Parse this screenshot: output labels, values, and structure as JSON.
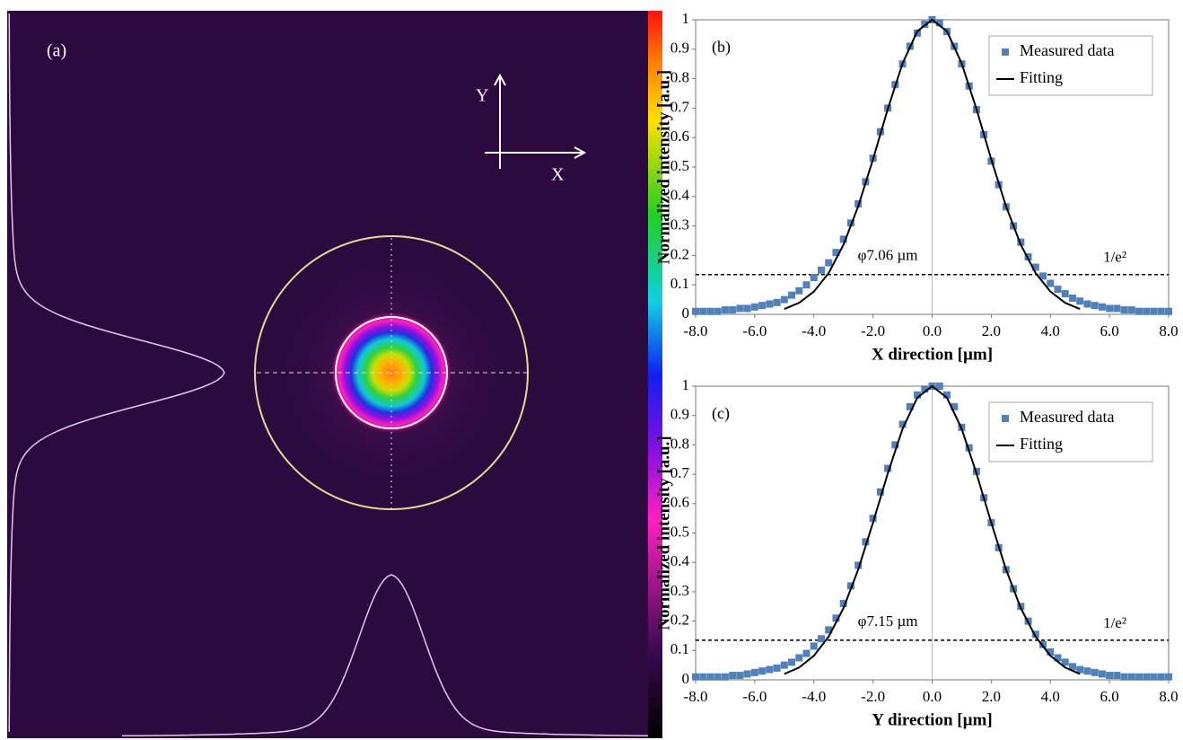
{
  "panel_a": {
    "label": "(a)",
    "axis_y": "Y",
    "axis_x": "X"
  },
  "chart_data": [
    {
      "type": "scatter-line",
      "panel_label": "(b)",
      "x_label": "X direction [µm]",
      "y_label": "Normalized intensity [a.u.]",
      "xlim": [
        -8,
        8
      ],
      "ylim": [
        0,
        1
      ],
      "xticks": [
        {
          "value": -8,
          "label": "-8.0"
        },
        {
          "value": -6,
          "label": "-6.0"
        },
        {
          "value": -4,
          "label": "-4.0"
        },
        {
          "value": -2,
          "label": "-2.0"
        },
        {
          "value": 0,
          "label": "0.0"
        },
        {
          "value": 2,
          "label": "2.0"
        },
        {
          "value": 4,
          "label": "4.0"
        },
        {
          "value": 6,
          "label": "6.0"
        },
        {
          "value": 8,
          "label": "8.0"
        }
      ],
      "yticks": [
        0,
        0.1,
        0.2,
        0.3,
        0.4,
        0.5,
        0.6,
        0.7,
        0.8,
        0.9,
        1
      ],
      "threshold": 0.135,
      "threshold_label": "1/e²",
      "diameter_label": "φ7.06 µm",
      "legend": "upper right",
      "series": [
        {
          "name": "Measured data",
          "color": "#4f81bd",
          "marker": "square",
          "x": [
            -8,
            -7.75,
            -7.5,
            -7.25,
            -7,
            -6.75,
            -6.5,
            -6.25,
            -6,
            -5.75,
            -5.5,
            -5.25,
            -5,
            -4.75,
            -4.5,
            -4.25,
            -4,
            -3.75,
            -3.5,
            -3.25,
            -3,
            -2.75,
            -2.5,
            -2.25,
            -2,
            -1.75,
            -1.5,
            -1.25,
            -1,
            -0.75,
            -0.5,
            -0.25,
            0,
            0.25,
            0.5,
            0.75,
            1,
            1.25,
            1.5,
            1.75,
            2,
            2.25,
            2.5,
            2.75,
            3,
            3.25,
            3.5,
            3.75,
            4,
            4.25,
            4.5,
            4.75,
            5,
            5.25,
            5.5,
            5.75,
            6,
            6.25,
            6.5,
            6.75,
            7,
            7.25,
            7.5,
            7.75,
            8
          ],
          "values": [
            0.01,
            0.01,
            0.01,
            0.01,
            0.015,
            0.015,
            0.02,
            0.02,
            0.025,
            0.03,
            0.035,
            0.04,
            0.05,
            0.065,
            0.08,
            0.1,
            0.125,
            0.15,
            0.175,
            0.21,
            0.255,
            0.31,
            0.375,
            0.45,
            0.53,
            0.62,
            0.7,
            0.78,
            0.85,
            0.91,
            0.955,
            0.985,
            1,
            0.99,
            0.96,
            0.91,
            0.85,
            0.775,
            0.695,
            0.61,
            0.52,
            0.44,
            0.365,
            0.3,
            0.245,
            0.195,
            0.16,
            0.13,
            0.105,
            0.085,
            0.07,
            0.055,
            0.045,
            0.035,
            0.03,
            0.025,
            0.02,
            0.02,
            0.015,
            0.015,
            0.01,
            0.01,
            0.01,
            0.01,
            0.01
          ]
        },
        {
          "name": "Fitting",
          "color": "#000000",
          "marker": "line",
          "x": [
            -5,
            -4.5,
            -4,
            -3.5,
            -3,
            -2.5,
            -2,
            -1.5,
            -1,
            -0.5,
            0,
            0.5,
            1,
            1.5,
            2,
            2.5,
            3,
            3.5,
            4,
            4.5,
            5
          ],
          "values": [
            0.018,
            0.039,
            0.077,
            0.14,
            0.236,
            0.367,
            0.526,
            0.697,
            0.852,
            0.961,
            1,
            0.961,
            0.852,
            0.697,
            0.526,
            0.367,
            0.236,
            0.14,
            0.077,
            0.039,
            0.018
          ]
        }
      ]
    },
    {
      "type": "scatter-line",
      "panel_label": "(c)",
      "x_label": "Y direction [µm]",
      "y_label": "Normalized intensity [a.u.]",
      "xlim": [
        -8,
        8
      ],
      "ylim": [
        0,
        1
      ],
      "xticks": [
        {
          "value": -8,
          "label": "-8.0"
        },
        {
          "value": -6,
          "label": "-6.0"
        },
        {
          "value": -4,
          "label": "-4.0"
        },
        {
          "value": -2,
          "label": "-2.0"
        },
        {
          "value": 0,
          "label": "0.0"
        },
        {
          "value": 2,
          "label": "2.0"
        },
        {
          "value": 4,
          "label": "4.0"
        },
        {
          "value": 6,
          "label": "6.0"
        },
        {
          "value": 8,
          "label": "8.0"
        }
      ],
      "yticks": [
        0,
        0.1,
        0.2,
        0.3,
        0.4,
        0.5,
        0.6,
        0.7,
        0.8,
        0.9,
        1
      ],
      "threshold": 0.135,
      "threshold_label": "1/e²",
      "diameter_label": "φ7.15 µm",
      "legend": "upper right",
      "series": [
        {
          "name": "Measured data",
          "color": "#4f81bd",
          "marker": "square",
          "x": [
            -8,
            -7.75,
            -7.5,
            -7.25,
            -7,
            -6.75,
            -6.5,
            -6.25,
            -6,
            -5.75,
            -5.5,
            -5.25,
            -5,
            -4.75,
            -4.5,
            -4.25,
            -4,
            -3.75,
            -3.5,
            -3.25,
            -3,
            -2.75,
            -2.5,
            -2.25,
            -2,
            -1.75,
            -1.5,
            -1.25,
            -1,
            -0.75,
            -0.5,
            -0.25,
            0,
            0.25,
            0.5,
            0.75,
            1,
            1.25,
            1.5,
            1.75,
            2,
            2.25,
            2.5,
            2.75,
            3,
            3.25,
            3.5,
            3.75,
            4,
            4.25,
            4.5,
            4.75,
            5,
            5.25,
            5.5,
            5.75,
            6,
            6.25,
            6.5,
            6.75,
            7,
            7.25,
            7.5,
            7.75,
            8
          ],
          "values": [
            0.01,
            0.01,
            0.01,
            0.01,
            0.01,
            0.015,
            0.015,
            0.02,
            0.025,
            0.03,
            0.035,
            0.04,
            0.05,
            0.06,
            0.075,
            0.09,
            0.115,
            0.14,
            0.17,
            0.21,
            0.26,
            0.32,
            0.39,
            0.47,
            0.55,
            0.64,
            0.72,
            0.8,
            0.87,
            0.93,
            0.97,
            0.99,
            1,
            1,
            0.97,
            0.93,
            0.86,
            0.79,
            0.71,
            0.62,
            0.535,
            0.45,
            0.375,
            0.31,
            0.25,
            0.2,
            0.155,
            0.12,
            0.095,
            0.075,
            0.06,
            0.045,
            0.035,
            0.03,
            0.025,
            0.02,
            0.015,
            0.015,
            0.01,
            0.01,
            0.01,
            0.01,
            0.01,
            0.01,
            0.01
          ]
        },
        {
          "name": "Fitting",
          "color": "#000000",
          "marker": "line",
          "x": [
            -5,
            -4.5,
            -4,
            -3.5,
            -3,
            -2.5,
            -2,
            -1.5,
            -1,
            -0.5,
            0,
            0.5,
            1,
            1.5,
            2,
            2.5,
            3,
            3.5,
            4,
            4.5,
            5
          ],
          "values": [
            0.02,
            0.042,
            0.082,
            0.147,
            0.244,
            0.376,
            0.535,
            0.703,
            0.855,
            0.961,
            1,
            0.961,
            0.855,
            0.703,
            0.535,
            0.376,
            0.244,
            0.147,
            0.082,
            0.042,
            0.02
          ]
        }
      ]
    }
  ]
}
